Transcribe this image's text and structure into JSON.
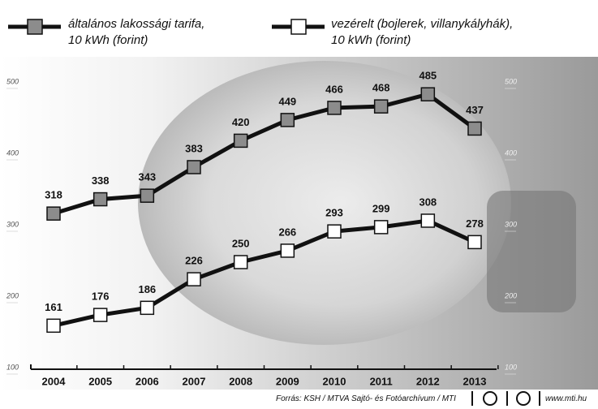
{
  "chart_data": {
    "type": "line",
    "categories": [
      "2004",
      "2005",
      "2006",
      "2007",
      "2008",
      "2009",
      "2010",
      "2011",
      "2012",
      "2013"
    ],
    "series": [
      {
        "name": "általános lakossági tarifa,\n10 kWh (forint)",
        "color": "#8c8c8c",
        "values": [
          318,
          338,
          343,
          383,
          420,
          449,
          466,
          468,
          485,
          437
        ]
      },
      {
        "name": "vezérelt (bojlerek, villanykályhák),\n10 kWh (forint)",
        "color": "#ffffff",
        "values": [
          161,
          176,
          186,
          226,
          250,
          266,
          293,
          299,
          308,
          278
        ]
      }
    ],
    "ylim": [
      100,
      500
    ],
    "yticks": [
      100,
      200,
      300,
      400,
      500
    ],
    "y2lim": [
      100,
      500
    ],
    "y2ticks": [
      100,
      200,
      300,
      400,
      500
    ],
    "source": "Forrás: KSH / MTVA Sajtó- és Fotóarchívum / MTI",
    "website": "www.mti.hu"
  }
}
